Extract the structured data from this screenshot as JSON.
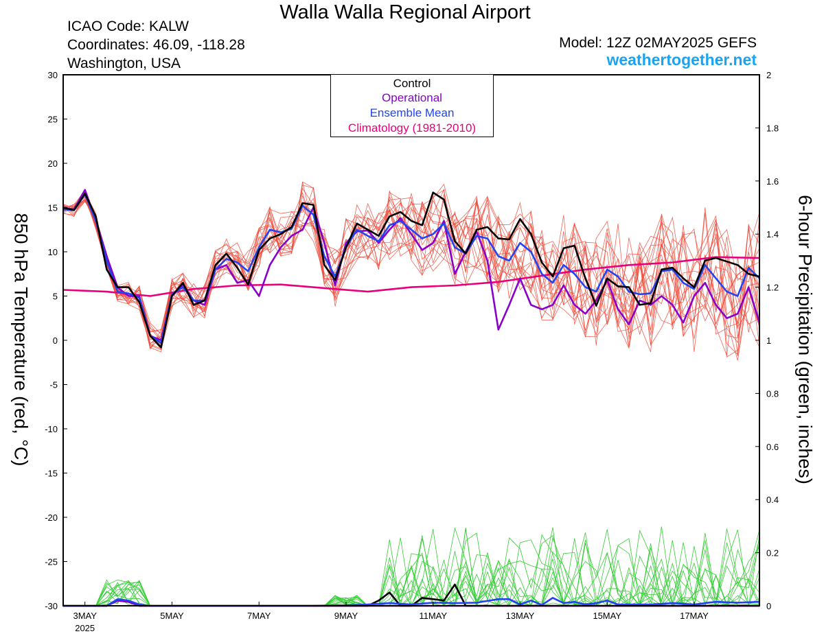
{
  "header": {
    "title": "Walla Walla Regional Airport",
    "icao": "ICAO Code: KALW",
    "coords": "Coordinates: 46.09, -118.28",
    "region": "Washington, USA",
    "model": "Model: 12Z 02MAY2025 GEFS",
    "site": "weathertogether.net"
  },
  "legend": {
    "control": "Control",
    "operational": "Operational",
    "mean": "Ensemble Mean",
    "climo": "Climatology (1981-2010)"
  },
  "colors": {
    "control": "#000000",
    "operational": "#8800cc",
    "mean": "#2244ee",
    "climo": "#e6007a",
    "members_temp": "#ef4a3a",
    "members_precip": "#33cc33",
    "site": "#1aa3f2"
  },
  "chart_data": {
    "type": "line",
    "ylabel_left": "850 hPa Temperature (red, °C)",
    "ylabel_right": "6-hour Precipitation (green, inches)",
    "ylim_left": [
      -30,
      30
    ],
    "ylim_right": [
      0,
      2
    ],
    "yticks_left": [
      "30",
      "25",
      "20",
      "15",
      "10",
      "5",
      "0",
      "-5",
      "-10",
      "-15",
      "-20",
      "-25",
      "-30"
    ],
    "yticks_right": [
      "2",
      "1.8",
      "1.6",
      "1.4",
      "1.2",
      "1",
      "0.8",
      "0.6",
      "0.4",
      "0.2",
      "0"
    ],
    "x_tick_labels": [
      "3MAY",
      "5MAY",
      "7MAY",
      "9MAY",
      "11MAY",
      "13MAY",
      "15MAY",
      "17MAY"
    ],
    "x_tick_days": [
      3,
      5,
      7,
      9,
      11,
      13,
      15,
      17
    ],
    "x_year_label": "2025",
    "xlim_days": [
      2.5,
      18.5
    ],
    "grid": false,
    "series": [
      {
        "name": "Control",
        "axis": "left",
        "x_days": [
          2.5,
          2.75,
          3.0,
          3.25,
          3.5,
          3.75,
          4.0,
          4.25,
          4.5,
          4.75,
          5.0,
          5.25,
          5.5,
          5.75,
          6.0,
          6.25,
          6.5,
          6.75,
          7.0,
          7.25,
          7.5,
          7.75,
          8.0,
          8.25,
          8.5,
          8.75,
          9.0,
          9.25,
          9.5,
          9.75,
          10.0,
          10.25,
          10.5,
          10.75,
          11.0,
          11.25,
          11.5,
          11.75,
          12.0,
          12.25,
          12.5,
          12.75,
          13.0,
          13.25,
          13.5,
          13.75,
          14.0,
          14.25,
          14.5,
          14.75,
          15.0,
          15.25,
          15.5,
          15.75,
          16.0,
          16.25,
          16.5,
          16.75,
          17.0,
          17.25,
          17.5,
          17.75,
          18.0,
          18.25,
          18.5
        ],
        "values": [
          15.0,
          14.7,
          16.6,
          14.0,
          8.0,
          6.0,
          6.0,
          4.3,
          0.5,
          -0.8,
          5.0,
          6.5,
          4.0,
          4.5,
          8.5,
          9.8,
          8.2,
          6.3,
          10.2,
          11.5,
          12.0,
          12.8,
          15.5,
          15.3,
          8.5,
          6.8,
          10.5,
          13.2,
          12.5,
          11.8,
          14.0,
          14.5,
          13.5,
          13.0,
          16.7,
          15.9,
          11.2,
          9.8,
          12.5,
          12.8,
          11.5,
          11.4,
          13.7,
          12.0,
          8.8,
          7.2,
          10.4,
          10.7,
          7.0,
          3.9,
          7.0,
          6.1,
          6.0,
          4.0,
          4.2,
          8.0,
          8.2,
          7.0,
          6.0,
          9.0,
          9.3,
          8.9,
          8.5,
          7.5,
          7.2
        ]
      },
      {
        "name": "Operational",
        "axis": "left",
        "x_days": [
          2.5,
          2.75,
          3.0,
          3.25,
          3.5,
          3.75,
          4.0,
          4.25,
          4.5,
          4.75,
          5.0,
          5.25,
          5.5,
          5.75,
          6.0,
          6.25,
          6.5,
          6.75,
          7.0,
          7.25,
          7.5,
          7.75,
          8.0,
          8.25,
          8.5,
          8.75,
          9.0,
          9.25,
          9.5,
          9.75,
          10.0,
          10.25,
          10.5,
          10.75,
          11.0,
          11.25,
          11.5,
          11.75,
          12.0,
          12.25,
          12.5,
          12.75,
          13.0,
          13.25,
          13.5,
          13.75,
          14.0,
          14.25,
          14.5,
          14.75,
          15.0,
          15.25,
          15.5,
          15.75,
          16.0,
          16.25,
          16.5,
          16.75,
          17.0,
          17.25,
          17.5,
          17.75,
          18.0,
          18.25,
          18.5
        ],
        "values": [
          15.0,
          14.8,
          17.0,
          13.6,
          9.5,
          6.0,
          5.0,
          5.0,
          0.5,
          0.0,
          5.0,
          6.3,
          4.5,
          4.0,
          8.0,
          8.5,
          6.5,
          6.8,
          5.0,
          8.5,
          10.5,
          11.8,
          12.5,
          15.0,
          11.0,
          6.2,
          11.0,
          12.3,
          12.4,
          11.0,
          12.5,
          13.8,
          12.0,
          10.2,
          11.0,
          13.5,
          7.5,
          10.0,
          12.3,
          9.0,
          1.2,
          4.0,
          7.0,
          4.0,
          3.5,
          4.0,
          6.2,
          4.0,
          3.0,
          4.5,
          6.8,
          3.5,
          1.8,
          4.5,
          4.0,
          5.0,
          4.0,
          2.0,
          5.0,
          6.5,
          4.0,
          2.5,
          3.0,
          6.0,
          2.0
        ]
      },
      {
        "name": "Ensemble Mean",
        "axis": "left",
        "x_days": [
          2.5,
          2.75,
          3.0,
          3.25,
          3.5,
          3.75,
          4.0,
          4.25,
          4.5,
          4.75,
          5.0,
          5.25,
          5.5,
          5.75,
          6.0,
          6.25,
          6.5,
          6.75,
          7.0,
          7.25,
          7.5,
          7.75,
          8.0,
          8.25,
          8.5,
          8.75,
          9.0,
          9.25,
          9.5,
          9.75,
          10.0,
          10.25,
          10.5,
          10.75,
          11.0,
          11.25,
          11.5,
          11.75,
          12.0,
          12.25,
          12.5,
          12.75,
          13.0,
          13.25,
          13.5,
          13.75,
          14.0,
          14.25,
          14.5,
          14.75,
          15.0,
          15.25,
          15.5,
          15.75,
          16.0,
          16.25,
          16.5,
          16.75,
          17.0,
          17.25,
          17.5,
          17.75,
          18.0,
          18.25,
          18.5
        ],
        "values": [
          14.8,
          14.7,
          16.5,
          13.5,
          9.0,
          5.5,
          5.3,
          4.8,
          0.5,
          -0.3,
          5.2,
          6.0,
          4.5,
          4.5,
          8.0,
          9.2,
          8.8,
          7.8,
          10.5,
          12.5,
          12.2,
          12.6,
          15.2,
          14.2,
          9.5,
          7.2,
          10.5,
          12.5,
          11.8,
          11.2,
          13.0,
          13.5,
          12.5,
          11.5,
          12.0,
          13.2,
          10.5,
          9.8,
          11.8,
          11.5,
          9.5,
          9.0,
          11.0,
          10.0,
          7.5,
          6.5,
          8.5,
          7.5,
          6.0,
          5.5,
          8.0,
          7.2,
          5.5,
          5.2,
          5.3,
          7.8,
          8.0,
          6.5,
          5.8,
          8.5,
          7.0,
          5.5,
          5.0,
          8.2,
          7.0
        ]
      },
      {
        "name": "Climatology (1981-2010)",
        "axis": "left",
        "x_days": [
          2.5,
          3.5,
          4.5,
          5.5,
          6.5,
          7.5,
          8.5,
          9.5,
          10.5,
          11.5,
          12.5,
          13.5,
          14.5,
          15.5,
          16.5,
          17.5,
          18.5
        ],
        "values": [
          5.7,
          5.5,
          5.0,
          5.8,
          6.2,
          6.3,
          5.9,
          5.5,
          6.0,
          6.2,
          6.6,
          7.3,
          8.0,
          8.5,
          8.8,
          9.4,
          9.3
        ]
      },
      {
        "name": "Control",
        "axis": "right",
        "x_days": [
          2.5,
          3.0,
          3.25,
          3.5,
          3.75,
          4.0,
          4.25,
          4.5,
          5.0,
          6.0,
          7.0,
          8.0,
          9.0,
          9.5,
          9.75,
          10.0,
          10.25,
          10.5,
          10.75,
          11.0,
          11.25,
          11.5,
          11.75,
          12.0,
          12.5,
          13.0,
          13.5,
          14.0,
          14.5,
          15.0,
          15.5,
          16.0,
          16.5,
          17.0,
          17.5,
          18.0,
          18.5
        ],
        "values": [
          0,
          0,
          0,
          0,
          0.02,
          0.015,
          0,
          0,
          0,
          0,
          0,
          0,
          0,
          0,
          0.02,
          0.05,
          0,
          0,
          0.03,
          0.025,
          0.02,
          0.08,
          0,
          0,
          0,
          0,
          0,
          0,
          0,
          0,
          0,
          0,
          0,
          0,
          0,
          0,
          0
        ]
      },
      {
        "name": "Operational",
        "axis": "right",
        "x_days": [
          2.5,
          3.0,
          3.5,
          3.75,
          4.0,
          4.25,
          4.5,
          5.0,
          18.5
        ],
        "values": [
          0,
          0,
          0,
          0.02,
          0.015,
          0,
          0,
          0,
          0
        ]
      },
      {
        "name": "Ensemble Mean",
        "axis": "right",
        "x_days": [
          2.5,
          3.0,
          3.5,
          3.75,
          4.0,
          4.25,
          4.5,
          5.0,
          6.0,
          7.0,
          8.0,
          9.0,
          9.5,
          10.0,
          10.5,
          11.0,
          11.5,
          12.0,
          12.5,
          12.75,
          13.0,
          13.25,
          13.5,
          13.75,
          14.0,
          14.25,
          14.5,
          14.75,
          15.0,
          15.25,
          15.5,
          16.0,
          16.5,
          17.0,
          17.5,
          18.0,
          18.5
        ],
        "values": [
          0,
          0,
          0,
          0.025,
          0.02,
          0.005,
          0,
          0,
          0,
          0,
          0,
          0.002,
          0.005,
          0.01,
          0.005,
          0.012,
          0.01,
          0.012,
          0.025,
          0.025,
          0.005,
          0.02,
          0.003,
          0.03,
          0.01,
          0.015,
          0.005,
          0.01,
          0.02,
          0.005,
          0.005,
          0.005,
          0.01,
          0.005,
          0.015,
          0.012,
          0.015
        ]
      }
    ]
  }
}
